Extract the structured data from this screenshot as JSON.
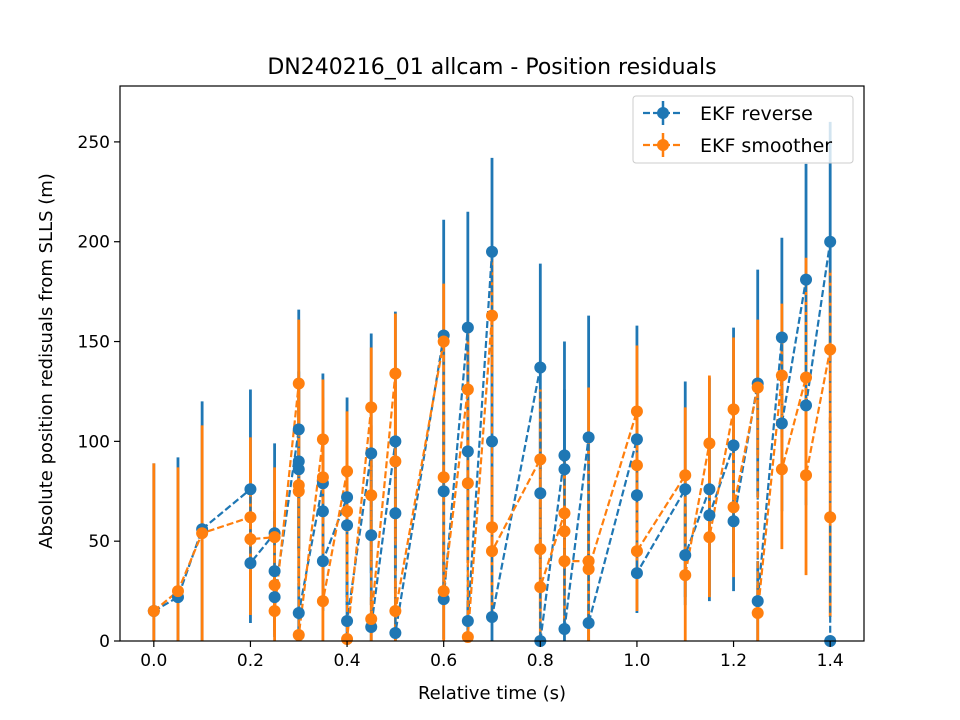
{
  "chart_data": {
    "type": "errorbar-line",
    "title": "DN240216_01 allcam - Position residuals",
    "xlabel": "Relative time (s)",
    "ylabel": "Absolute position redisuals from SLLS (m)",
    "xlim": [
      -0.07,
      1.47
    ],
    "ylim": [
      0,
      278
    ],
    "xticks": [
      0.0,
      0.2,
      0.4,
      0.6,
      0.8,
      1.0,
      1.2,
      1.4
    ],
    "xtick_labels": [
      "0.0",
      "0.2",
      "0.4",
      "0.6",
      "0.8",
      "1.0",
      "1.2",
      "1.4"
    ],
    "yticks": [
      0,
      50,
      100,
      150,
      200,
      250
    ],
    "ytick_labels": [
      "0",
      "50",
      "100",
      "150",
      "200",
      "250"
    ],
    "grid": false,
    "legend_position": "top-right",
    "series": [
      {
        "name": "EKF reverse",
        "color": "#1f77b4",
        "linestyle": "dashed",
        "x": [
          0.0,
          0.05,
          0.1,
          0.2,
          0.2,
          0.25,
          0.25,
          0.25,
          0.3,
          0.3,
          0.3,
          0.3,
          0.35,
          0.35,
          0.35,
          0.4,
          0.4,
          0.4,
          0.45,
          0.45,
          0.45,
          0.5,
          0.5,
          0.5,
          0.6,
          0.6,
          0.6,
          0.65,
          0.65,
          0.65,
          0.7,
          0.7,
          0.7,
          0.8,
          0.8,
          0.8,
          0.85,
          0.85,
          0.85,
          0.9,
          0.9,
          1.0,
          1.0,
          1.0,
          1.1,
          1.1,
          1.15,
          1.15,
          1.2,
          1.2,
          1.25,
          1.25,
          1.3,
          1.3,
          1.35,
          1.35,
          1.4,
          1.4
        ],
        "y": [
          15,
          22,
          56,
          76,
          39,
          54,
          35,
          22,
          106,
          90,
          86,
          14,
          79,
          65,
          40,
          72,
          58,
          10,
          94,
          53,
          7,
          100,
          64,
          4,
          153,
          75,
          21,
          157,
          95,
          10,
          195,
          100,
          12,
          137,
          74,
          0,
          93,
          86,
          6,
          102,
          9,
          101,
          73,
          34,
          76,
          43,
          76,
          63,
          98,
          60,
          129,
          20,
          152,
          109,
          181,
          118,
          200,
          0
        ],
        "yerr": [
          74,
          70,
          64,
          50,
          30,
          45,
          30,
          20,
          60,
          45,
          40,
          15,
          55,
          45,
          25,
          50,
          40,
          10,
          60,
          35,
          7,
          65,
          40,
          4,
          58,
          40,
          20,
          58,
          45,
          10,
          47,
          50,
          12,
          52,
          35,
          0,
          57,
          40,
          6,
          61,
          9,
          57,
          37,
          20,
          54,
          25,
          56,
          40,
          59,
          35,
          57,
          20,
          50,
          44,
          58,
          50,
          60,
          0
        ]
      },
      {
        "name": "EKF smoother",
        "color": "#ff7f0e",
        "linestyle": "dashed",
        "x": [
          0.0,
          0.05,
          0.1,
          0.2,
          0.2,
          0.25,
          0.25,
          0.25,
          0.3,
          0.3,
          0.3,
          0.3,
          0.35,
          0.35,
          0.35,
          0.4,
          0.4,
          0.4,
          0.45,
          0.45,
          0.45,
          0.5,
          0.5,
          0.5,
          0.6,
          0.6,
          0.6,
          0.65,
          0.65,
          0.65,
          0.7,
          0.7,
          0.7,
          0.8,
          0.8,
          0.8,
          0.85,
          0.85,
          0.85,
          0.9,
          0.9,
          1.0,
          1.0,
          1.0,
          1.1,
          1.1,
          1.15,
          1.15,
          1.2,
          1.2,
          1.25,
          1.25,
          1.3,
          1.3,
          1.35,
          1.35,
          1.4,
          1.4
        ],
        "y": [
          15,
          25,
          54,
          62,
          51,
          52,
          28,
          15,
          129,
          78,
          75,
          3,
          101,
          82,
          20,
          85,
          65,
          1,
          117,
          73,
          11,
          134,
          90,
          15,
          150,
          82,
          25,
          126,
          79,
          2,
          163,
          57,
          45,
          91,
          46,
          27,
          64,
          55,
          40,
          40,
          36,
          115,
          88,
          45,
          83,
          33,
          99,
          52,
          116,
          67,
          127,
          14,
          133,
          86,
          132,
          83,
          146,
          62
        ],
        "yerr": [
          74,
          62,
          54,
          40,
          38,
          35,
          25,
          15,
          32,
          50,
          45,
          3,
          30,
          40,
          20,
          30,
          35,
          1,
          30,
          35,
          11,
          30,
          40,
          15,
          29,
          40,
          25,
          28,
          40,
          2,
          28,
          30,
          30,
          35,
          30,
          27,
          28,
          30,
          30,
          87,
          36,
          33,
          40,
          30,
          34,
          33,
          34,
          30,
          36,
          35,
          34,
          14,
          36,
          40,
          60,
          50,
          40,
          50
        ]
      }
    ]
  }
}
